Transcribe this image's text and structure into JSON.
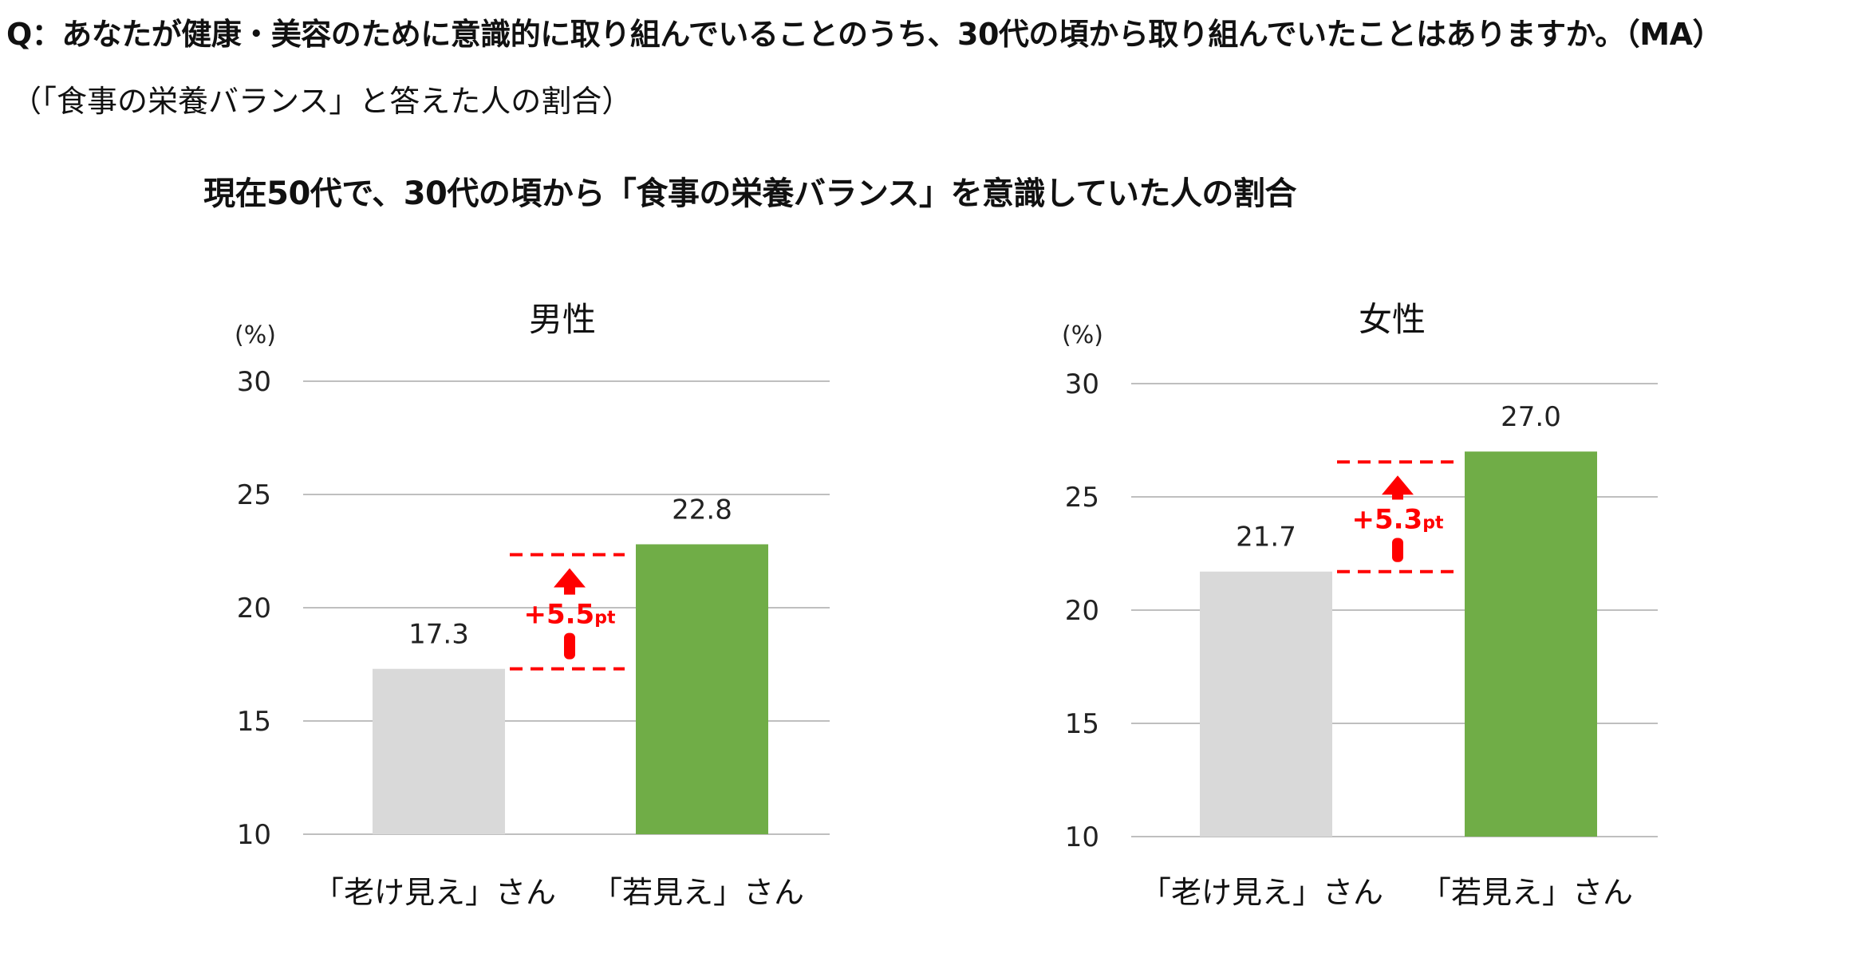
{
  "question": "Q：あなたが健康・美容のために意識的に取り組んでいることのうち、30代の頃から取り組んでいたことはありますか。（MA）",
  "note": "（「食事の栄養バランス」と答えた人の割合）",
  "main_title": "現在50代で、30代の頃から「食事の栄養バランス」を意識していた人の割合",
  "colors": {
    "old_bar": "#d9d9d9",
    "young_bar": "#70ad47",
    "gridline": "#bfbfbf",
    "diff": "#ff0000"
  },
  "chart_data": [
    {
      "type": "bar",
      "title": "男性",
      "unit": "(%)",
      "categories": [
        "「老け見え」さん",
        "「若見え」さん"
      ],
      "values": [
        17.3,
        22.8
      ],
      "value_labels": [
        "17.3",
        "22.8"
      ],
      "ylim": [
        10,
        30
      ],
      "yticks": [
        10,
        15,
        20,
        25,
        30
      ],
      "grid": true,
      "difference_label": "+5.5",
      "difference_unit": "pt"
    },
    {
      "type": "bar",
      "title": "女性",
      "unit": "(%)",
      "categories": [
        "「老け見え」さん",
        "「若見え」さん"
      ],
      "values": [
        21.7,
        27.0
      ],
      "value_labels": [
        "21.7",
        "27.0"
      ],
      "ylim": [
        10,
        30
      ],
      "yticks": [
        10,
        15,
        20,
        25,
        30
      ],
      "grid": true,
      "difference_label": "+5.3",
      "difference_unit": "pt"
    }
  ]
}
